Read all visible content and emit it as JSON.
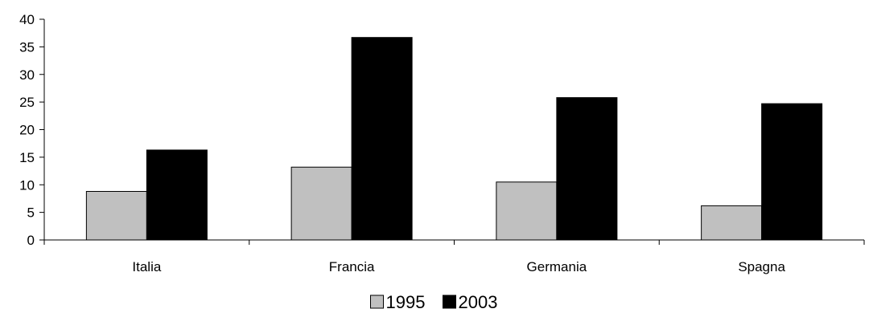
{
  "chart_data": {
    "type": "bar",
    "categories": [
      "Italia",
      "Francia",
      "Germania",
      "Spagna"
    ],
    "series": [
      {
        "name": "1995",
        "values": [
          8.8,
          13.2,
          10.5,
          6.2
        ],
        "color": "#c0c0c0"
      },
      {
        "name": "2003",
        "values": [
          16.3,
          36.7,
          25.8,
          24.7
        ],
        "color": "#000000"
      }
    ],
    "title": "",
    "xlabel": "",
    "ylabel": "",
    "ylim": [
      0,
      40
    ],
    "yticks": [
      "0",
      "5",
      "10",
      "15",
      "20",
      "25",
      "30",
      "35",
      "40"
    ],
    "grid": false,
    "legend_position": "bottom-center"
  }
}
